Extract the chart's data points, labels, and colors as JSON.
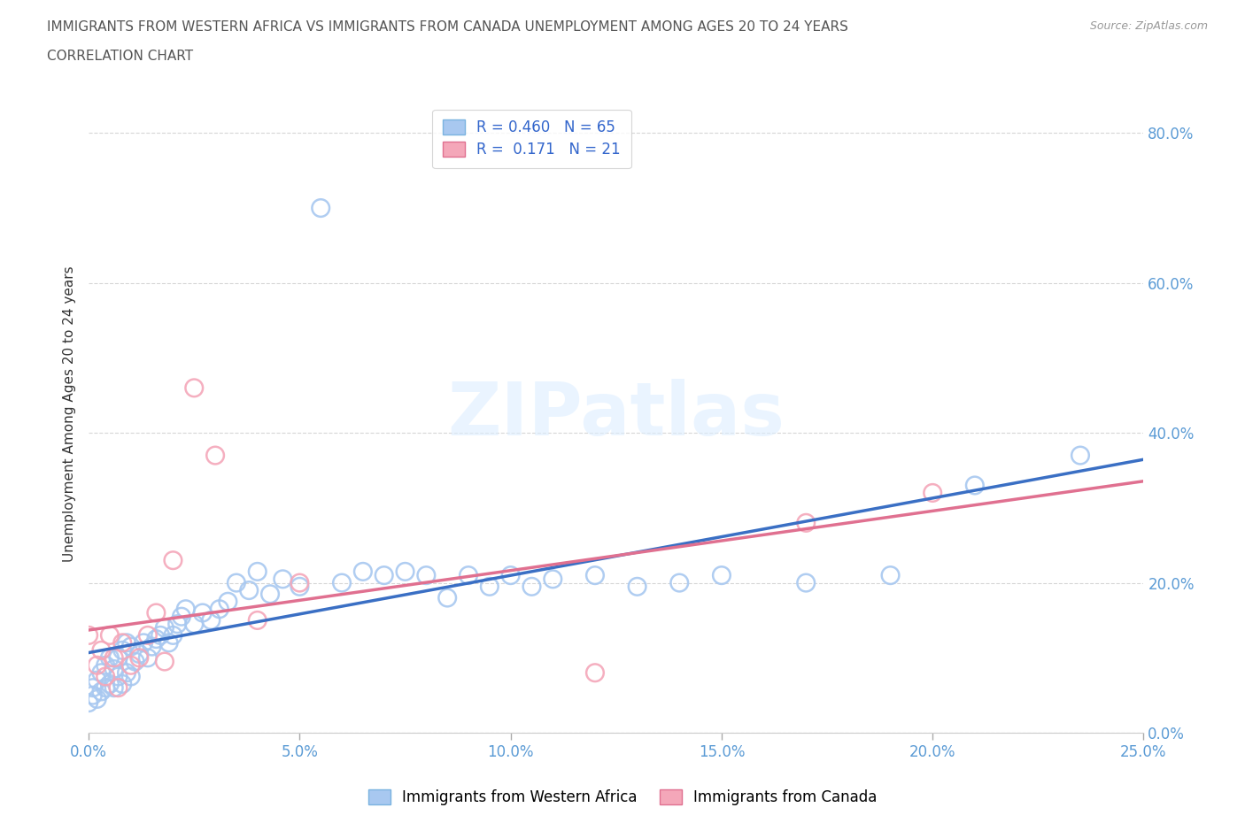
{
  "title_line1": "IMMIGRANTS FROM WESTERN AFRICA VS IMMIGRANTS FROM CANADA UNEMPLOYMENT AMONG AGES 20 TO 24 YEARS",
  "title_line2": "CORRELATION CHART",
  "source": "Source: ZipAtlas.com",
  "ylabel": "Unemployment Among Ages 20 to 24 years",
  "xlim": [
    0.0,
    0.25
  ],
  "ylim": [
    0.0,
    0.85
  ],
  "ytick_vals": [
    0.0,
    0.2,
    0.4,
    0.6,
    0.8
  ],
  "xtick_vals": [
    0.0,
    0.05,
    0.1,
    0.15,
    0.2,
    0.25
  ],
  "background_color": "#ffffff",
  "watermark": "ZIPatlas",
  "blue_color": "#a8c8f0",
  "blue_edge": "#7ab3e0",
  "blue_line": "#3a6fc4",
  "pink_color": "#f4a7b9",
  "pink_edge": "#e07090",
  "pink_line": "#e07090",
  "blue_label": "Immigrants from Western Africa",
  "pink_label": "Immigrants from Canada",
  "blue_R": "0.460",
  "blue_N": "65",
  "pink_R": "0.171",
  "pink_N": "21",
  "blue_x": [
    0.0,
    0.001,
    0.001,
    0.002,
    0.002,
    0.003,
    0.003,
    0.004,
    0.004,
    0.005,
    0.005,
    0.006,
    0.006,
    0.007,
    0.007,
    0.008,
    0.008,
    0.009,
    0.009,
    0.01,
    0.01,
    0.011,
    0.012,
    0.013,
    0.014,
    0.015,
    0.016,
    0.017,
    0.018,
    0.019,
    0.02,
    0.021,
    0.022,
    0.023,
    0.025,
    0.027,
    0.029,
    0.031,
    0.033,
    0.035,
    0.038,
    0.04,
    0.043,
    0.046,
    0.05,
    0.055,
    0.06,
    0.065,
    0.07,
    0.075,
    0.08,
    0.085,
    0.09,
    0.095,
    0.1,
    0.105,
    0.11,
    0.12,
    0.13,
    0.14,
    0.15,
    0.17,
    0.19,
    0.21,
    0.235
  ],
  "blue_y": [
    0.04,
    0.05,
    0.06,
    0.045,
    0.07,
    0.055,
    0.08,
    0.06,
    0.09,
    0.065,
    0.1,
    0.06,
    0.085,
    0.075,
    0.1,
    0.065,
    0.11,
    0.08,
    0.12,
    0.075,
    0.115,
    0.095,
    0.105,
    0.12,
    0.1,
    0.115,
    0.125,
    0.13,
    0.14,
    0.12,
    0.13,
    0.145,
    0.155,
    0.165,
    0.145,
    0.16,
    0.15,
    0.165,
    0.175,
    0.2,
    0.19,
    0.215,
    0.185,
    0.205,
    0.195,
    0.7,
    0.2,
    0.215,
    0.21,
    0.215,
    0.21,
    0.18,
    0.21,
    0.195,
    0.21,
    0.195,
    0.205,
    0.21,
    0.195,
    0.2,
    0.21,
    0.2,
    0.21,
    0.33,
    0.37
  ],
  "pink_x": [
    0.0,
    0.002,
    0.003,
    0.004,
    0.005,
    0.006,
    0.007,
    0.008,
    0.01,
    0.012,
    0.014,
    0.016,
    0.018,
    0.02,
    0.025,
    0.03,
    0.04,
    0.05,
    0.12,
    0.17,
    0.2
  ],
  "pink_y": [
    0.13,
    0.09,
    0.11,
    0.075,
    0.13,
    0.1,
    0.06,
    0.12,
    0.09,
    0.1,
    0.13,
    0.16,
    0.095,
    0.23,
    0.46,
    0.37,
    0.15,
    0.2,
    0.08,
    0.28,
    0.32
  ]
}
